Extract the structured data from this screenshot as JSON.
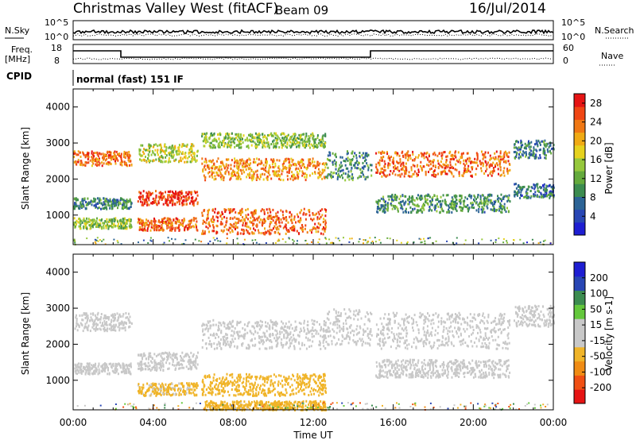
{
  "header": {
    "station": "Christmas Valley West (fitACF)",
    "beam": "Beam 09",
    "date": "16/Jul/2014"
  },
  "summary_panel": {
    "nsky_label": "N.Sky",
    "nsky_tick_hi": "10^5",
    "nsky_tick_lo": "10^0",
    "nsearch_label": "N.Search",
    "nsearch_tick_hi": "10^5",
    "nsearch_tick_lo": "10^0",
    "freq_label_1": "Freq.",
    "freq_label_2": "[MHz]",
    "freq_tick_hi": "18",
    "freq_tick_lo": "8",
    "nave_label": "Nave",
    "nave_tick_hi": "60",
    "nave_tick_lo": "0",
    "cpid_label": "CPID",
    "cpid_value": "normal (fast) 151 IF"
  },
  "colors": {
    "power_scale": [
      "#1e1ed2",
      "#2846b4",
      "#2d6496",
      "#3c8c50",
      "#64aa3c",
      "#96c83c",
      "#e6d21e",
      "#f0aa14",
      "#f07814",
      "#f04614",
      "#e61414"
    ],
    "velocity_scale": [
      "#e61414",
      "#f05014",
      "#f08c14",
      "#f0b428",
      "#c8c8c8",
      "#c8c8c8",
      "#64c83c",
      "#3c8c50",
      "#2846b4",
      "#1e1ed2"
    ],
    "gray_scatter": "#c8c8c8"
  },
  "chart_data": [
    {
      "type": "heatmap",
      "panel": "power",
      "ylabel": "Slant Range [km]",
      "yticks": [
        "1000",
        "2000",
        "3000",
        "4000"
      ],
      "ylim": [
        180,
        4500
      ],
      "xlim": [
        "00:00",
        "24:00"
      ],
      "colorbar_label": "Power [dB]",
      "colorbar_ticks": [
        "4",
        "8",
        "12",
        "16",
        "20",
        "24",
        "28"
      ],
      "colorbar_range": [
        0,
        30
      ],
      "bands": [
        {
          "t_start": 0.0,
          "t_end": 2.9,
          "range_start": 2400,
          "range_end": 2800,
          "value": 24
        },
        {
          "t_start": 0.0,
          "t_end": 2.9,
          "range_start": 1200,
          "range_end": 1500,
          "value": 9
        },
        {
          "t_start": 0.0,
          "t_end": 2.9,
          "range_start": 650,
          "range_end": 950,
          "value": 14
        },
        {
          "t_start": 3.2,
          "t_end": 6.2,
          "range_start": 1300,
          "range_end": 1700,
          "value": 27
        },
        {
          "t_start": 3.2,
          "t_end": 6.2,
          "range_start": 600,
          "range_end": 950,
          "value": 24
        },
        {
          "t_start": 3.2,
          "t_end": 6.2,
          "range_start": 2500,
          "range_end": 3000,
          "value": 16
        },
        {
          "t_start": 6.4,
          "t_end": 12.6,
          "range_start": 500,
          "range_end": 1200,
          "value": 24
        },
        {
          "t_start": 6.4,
          "t_end": 12.6,
          "range_start": 2000,
          "range_end": 2600,
          "value": 22
        },
        {
          "t_start": 6.4,
          "t_end": 12.6,
          "range_start": 2900,
          "range_end": 3300,
          "value": 14
        },
        {
          "t_start": 12.6,
          "t_end": 14.9,
          "range_start": 2000,
          "range_end": 2800,
          "value": 10
        },
        {
          "t_start": 15.1,
          "t_end": 21.8,
          "range_start": 2100,
          "range_end": 2800,
          "value": 24
        },
        {
          "t_start": 15.1,
          "t_end": 21.8,
          "range_start": 1100,
          "range_end": 1600,
          "value": 10
        },
        {
          "t_start": 22.0,
          "t_end": 24.0,
          "range_start": 2600,
          "range_end": 3100,
          "value": 9
        },
        {
          "t_start": 22.0,
          "t_end": 24.0,
          "range_start": 1500,
          "range_end": 1900,
          "value": 7
        }
      ]
    },
    {
      "type": "heatmap",
      "panel": "velocity",
      "ylabel": "Slant Range [km]",
      "yticks": [
        "1000",
        "2000",
        "3000",
        "4000"
      ],
      "ylim": [
        180,
        4500
      ],
      "xlim": [
        "00:00",
        "24:00"
      ],
      "xlabel": "Time UT",
      "xticks": [
        "00:00",
        "04:00",
        "08:00",
        "12:00",
        "16:00",
        "20:00",
        "00:00"
      ],
      "colorbar_label": "Velocity [m s-1]",
      "colorbar_ticks": [
        "200",
        "100",
        "50",
        "15",
        "-15",
        "-50",
        "-100",
        "-200"
      ],
      "colorbar_range": [
        -250,
        250
      ],
      "bands": [
        {
          "t_start": 0.0,
          "t_end": 2.9,
          "range_start": 2400,
          "range_end": 2900,
          "value": 0
        },
        {
          "t_start": 0.0,
          "t_end": 2.9,
          "range_start": 1200,
          "range_end": 1500,
          "value": 0
        },
        {
          "t_start": 3.2,
          "t_end": 6.2,
          "range_start": 1300,
          "range_end": 1800,
          "value": 0
        },
        {
          "t_start": 3.2,
          "t_end": 6.2,
          "range_start": 600,
          "range_end": 950,
          "value": -60
        },
        {
          "t_start": 6.4,
          "t_end": 12.6,
          "range_start": 600,
          "range_end": 1200,
          "value": -70
        },
        {
          "t_start": 6.4,
          "t_end": 12.6,
          "range_start": 1900,
          "range_end": 2700,
          "value": 0
        },
        {
          "t_start": 12.6,
          "t_end": 14.9,
          "range_start": 2000,
          "range_end": 3000,
          "value": 5
        },
        {
          "t_start": 15.1,
          "t_end": 21.8,
          "range_start": 1900,
          "range_end": 2900,
          "value": 0
        },
        {
          "t_start": 15.1,
          "t_end": 21.8,
          "range_start": 1100,
          "range_end": 1600,
          "value": 0
        },
        {
          "t_start": 22.0,
          "t_end": 24.0,
          "range_start": 2500,
          "range_end": 3100,
          "value": 0
        },
        {
          "t_start": 6.5,
          "t_end": 12.6,
          "range_start": 200,
          "range_end": 450,
          "value": -80
        }
      ]
    }
  ]
}
